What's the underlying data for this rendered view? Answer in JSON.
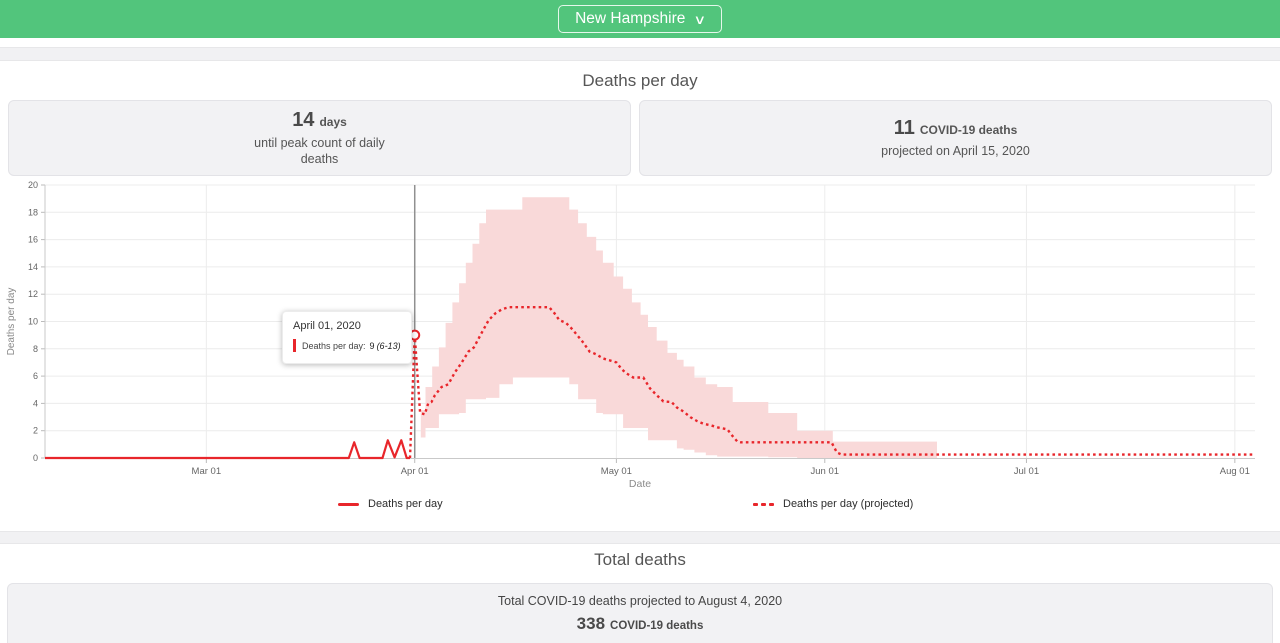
{
  "header": {
    "region_selected": "New Hampshire",
    "chevron": "∨"
  },
  "deaths_per_day": {
    "title": "Deaths per day",
    "stat_cards": [
      {
        "value": "14",
        "unit": "days",
        "description": "until peak count of daily deaths"
      },
      {
        "value": "11",
        "unit": "COVID-19 deaths",
        "description": "projected on April 15, 2020"
      }
    ],
    "tooltip": {
      "date": "April 01, 2020",
      "label": "Deaths per day:",
      "value": "9",
      "range": "(6-13)"
    },
    "legend": [
      {
        "label": "Deaths per day",
        "style": "solid"
      },
      {
        "label": "Deaths per day (projected)",
        "style": "dotted"
      }
    ]
  },
  "total_deaths": {
    "title": "Total deaths",
    "summary": "Total COVID-19 deaths projected to August 4, 2020",
    "value": "338",
    "unit": "COVID-19 deaths"
  },
  "colors": {
    "header_green": "#52c57c",
    "line_red": "#e8262b",
    "band_pink": "#f9d9d9",
    "grid": "#ececec",
    "axis": "#c9c9c9",
    "today_line": "#909090",
    "tick_text": "#666666",
    "axis_title": "#8a8a8a"
  },
  "chart_data": {
    "type": "line",
    "title": "Deaths per day",
    "xlabel": "Date",
    "ylabel": "Deaths per day",
    "ylim": [
      0,
      20
    ],
    "y_ticks": [
      0,
      2,
      4,
      6,
      8,
      10,
      12,
      14,
      16,
      18,
      20
    ],
    "x_domain_days": [
      0,
      180
    ],
    "x_ticks": [
      {
        "day": 24,
        "label": "Mar 01"
      },
      {
        "day": 55,
        "label": "Apr 01"
      },
      {
        "day": 85,
        "label": "May 01"
      },
      {
        "day": 116,
        "label": "Jun 01"
      },
      {
        "day": 146,
        "label": "Jul 01"
      },
      {
        "day": 177,
        "label": "Aug 01"
      }
    ],
    "grid": true,
    "legend_position": "bottom",
    "today_marker": {
      "day": 55,
      "value": 9,
      "date": "April 01, 2020",
      "range_low": 6,
      "range_high": 13
    },
    "series": [
      {
        "name": "Deaths per day",
        "style": "solid",
        "points": [
          [
            0,
            0
          ],
          [
            45.2,
            0
          ],
          [
            46,
            1.15
          ],
          [
            46.8,
            0
          ],
          [
            50.2,
            0
          ],
          [
            51,
            1.3
          ],
          [
            52,
            0.05
          ],
          [
            53,
            1.3
          ],
          [
            53.8,
            0
          ],
          [
            54.3,
            0
          ]
        ]
      },
      {
        "name": "Deaths per day (projected)",
        "style": "dotted",
        "points": [
          [
            54.3,
            0
          ],
          [
            55,
            9
          ],
          [
            55.8,
            3.3
          ],
          [
            56.5,
            3.2
          ],
          [
            57,
            4.0
          ],
          [
            57.5,
            4.1
          ],
          [
            58,
            4.6
          ],
          [
            59,
            5.2
          ],
          [
            60,
            5.4
          ],
          [
            61,
            6.3
          ],
          [
            62,
            7.0
          ],
          [
            63,
            7.8
          ],
          [
            63.8,
            8.1
          ],
          [
            65,
            9.2
          ],
          [
            66,
            10.1
          ],
          [
            67,
            10.6
          ],
          [
            68,
            10.9
          ],
          [
            69,
            11.05
          ],
          [
            75,
            11.05
          ],
          [
            75.8,
            10.6
          ],
          [
            76.5,
            10.1
          ],
          [
            77.5,
            9.9
          ],
          [
            78.3,
            9.5
          ],
          [
            79,
            9.1
          ],
          [
            80,
            8.5
          ],
          [
            81,
            7.8
          ],
          [
            82,
            7.6
          ],
          [
            83,
            7.3
          ],
          [
            84,
            7.15
          ],
          [
            85,
            7.0
          ],
          [
            85.8,
            6.5
          ],
          [
            86.5,
            6.2
          ],
          [
            87.5,
            5.9
          ],
          [
            89,
            5.9
          ],
          [
            90,
            5.1
          ],
          [
            91,
            4.6
          ],
          [
            92,
            4.15
          ],
          [
            93.2,
            4.1
          ],
          [
            94,
            3.7
          ],
          [
            95,
            3.4
          ],
          [
            96,
            3.0
          ],
          [
            97,
            2.7
          ],
          [
            98,
            2.5
          ],
          [
            99,
            2.4
          ],
          [
            100,
            2.25
          ],
          [
            101.5,
            2.1
          ],
          [
            102.3,
            1.6
          ],
          [
            103,
            1.2
          ],
          [
            103.5,
            1.15
          ],
          [
            117,
            1.15
          ],
          [
            117.8,
            0.4
          ],
          [
            118.5,
            0.25
          ],
          [
            180,
            0.25
          ]
        ]
      }
    ],
    "band": {
      "name": "projection uncertainty interval",
      "steps": [
        [
          55.9,
          1.5,
          3.5
        ],
        [
          56.6,
          2.2,
          5.2
        ],
        [
          57.6,
          2.2,
          6.7
        ],
        [
          58.6,
          3.2,
          8.1
        ],
        [
          59.6,
          3.2,
          9.9
        ],
        [
          60.6,
          3.2,
          11.4
        ],
        [
          61.6,
          3.3,
          12.8
        ],
        [
          62.6,
          4.3,
          14.3
        ],
        [
          63.6,
          4.3,
          15.7
        ],
        [
          64.6,
          4.3,
          17.2
        ],
        [
          65.6,
          4.4,
          18.2
        ],
        [
          67.6,
          5.4,
          18.2
        ],
        [
          69.6,
          5.9,
          18.2
        ],
        [
          71,
          5.9,
          19.1
        ],
        [
          76.3,
          5.9,
          19.1
        ],
        [
          78,
          5.4,
          18.2
        ],
        [
          79.3,
          4.3,
          17.2
        ],
        [
          80.6,
          4.3,
          16.2
        ],
        [
          82,
          3.3,
          15.2
        ],
        [
          83,
          3.2,
          14.3
        ],
        [
          84.6,
          3.2,
          13.3
        ],
        [
          86,
          2.2,
          12.4
        ],
        [
          87.3,
          2.2,
          11.4
        ],
        [
          88.6,
          2.2,
          10.5
        ],
        [
          89.7,
          1.3,
          9.6
        ],
        [
          91,
          1.3,
          8.6
        ],
        [
          92.6,
          1.3,
          7.7
        ],
        [
          94,
          0.7,
          7.2
        ],
        [
          95,
          0.6,
          6.7
        ],
        [
          96.6,
          0.4,
          5.9
        ],
        [
          98.3,
          0.2,
          5.4
        ],
        [
          100,
          0.1,
          5.2
        ],
        [
          102.3,
          0.1,
          4.1
        ],
        [
          107.6,
          0.05,
          3.3
        ],
        [
          111.9,
          0,
          2.0
        ],
        [
          117.2,
          0,
          1.2
        ],
        [
          132.7,
          0,
          1.2
        ]
      ]
    }
  }
}
